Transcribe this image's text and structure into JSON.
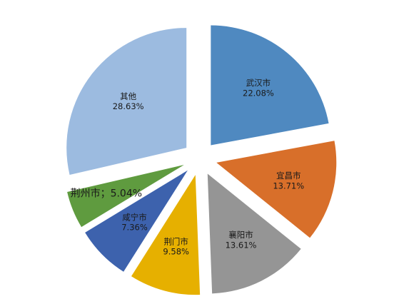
{
  "chart_data": {
    "type": "pie",
    "categories": [
      "武汉市",
      "宜昌市",
      "襄阳市",
      "荆门市",
      "咸宁市",
      "荆州市",
      "其他"
    ],
    "values": [
      22.08,
      13.71,
      13.61,
      9.58,
      7.36,
      5.04,
      28.63
    ],
    "value_labels": [
      "22.08%",
      "13.71%",
      "13.61%",
      "9.58%",
      "7.36%",
      "；5.04%",
      "28.63%"
    ],
    "colors": [
      "#4f89c0",
      "#d86f2a",
      "#959595",
      "#e6b000",
      "#3d62ad",
      "#5f9b3f",
      "#9cbbe0"
    ]
  }
}
